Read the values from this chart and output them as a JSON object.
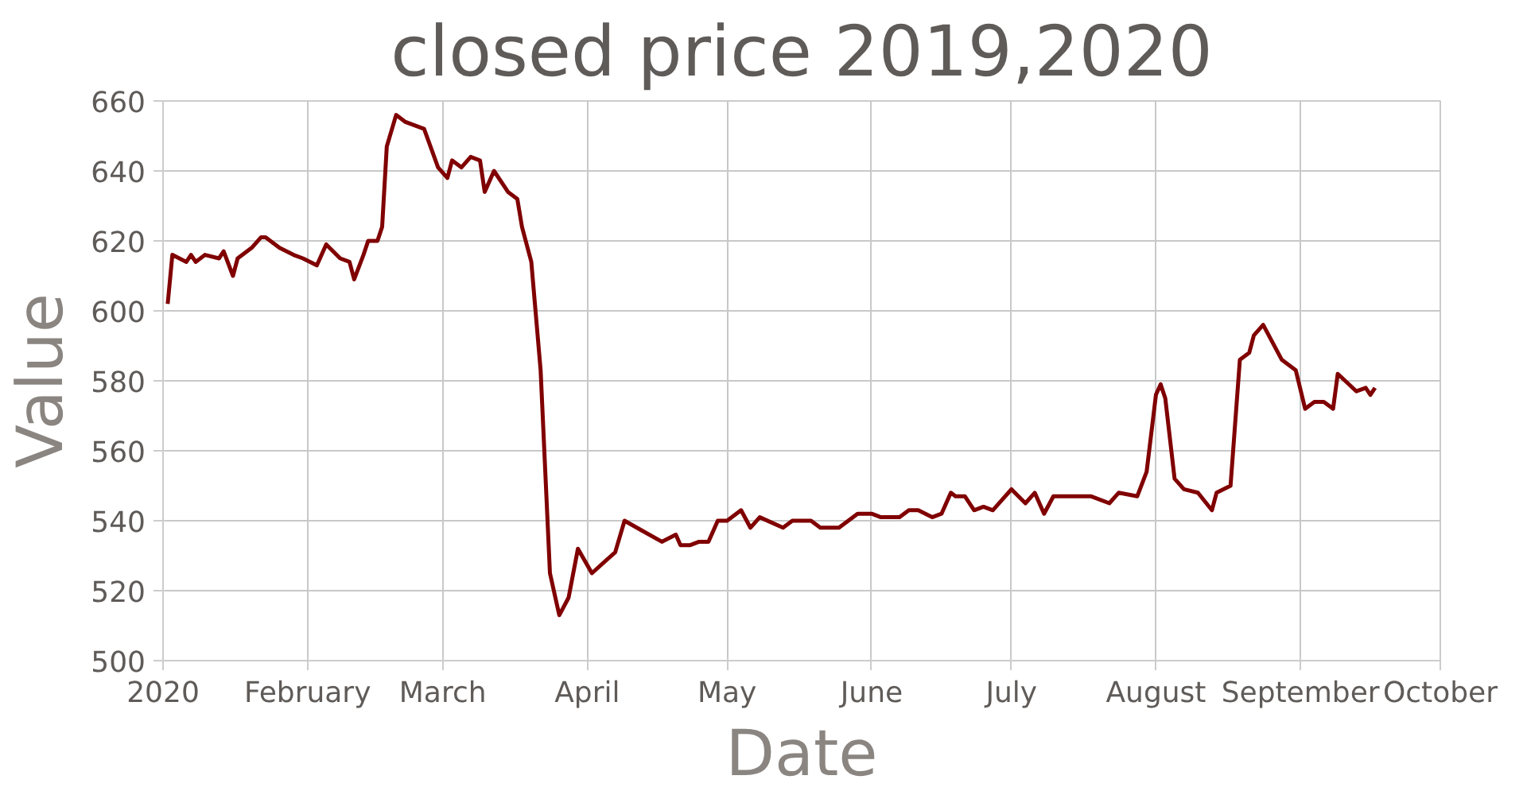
{
  "chart_data": {
    "type": "line",
    "title": "closed price 2019,2020",
    "xlabel": "Date",
    "ylabel": "Value",
    "x": [
      "2020-01-02",
      "2020-01-03",
      "2020-01-06",
      "2020-01-07",
      "2020-01-08",
      "2020-01-10",
      "2020-01-13",
      "2020-01-14",
      "2020-01-16",
      "2020-01-17",
      "2020-01-20",
      "2020-01-22",
      "2020-01-23",
      "2020-01-26",
      "2020-01-29",
      "2020-01-31",
      "2020-02-03",
      "2020-02-05",
      "2020-02-08",
      "2020-02-10",
      "2020-02-11",
      "2020-02-13",
      "2020-02-14",
      "2020-02-16",
      "2020-02-17",
      "2020-02-18",
      "2020-02-20",
      "2020-02-22",
      "2020-02-26",
      "2020-02-29",
      "2020-03-02",
      "2020-03-03",
      "2020-03-05",
      "2020-03-07",
      "2020-03-09",
      "2020-03-10",
      "2020-03-12",
      "2020-03-15",
      "2020-03-17",
      "2020-03-18",
      "2020-03-20",
      "2020-03-22",
      "2020-03-24",
      "2020-03-26",
      "2020-03-28",
      "2020-03-30",
      "2020-04-02",
      "2020-04-07",
      "2020-04-09",
      "2020-04-13",
      "2020-04-17",
      "2020-04-20",
      "2020-04-21",
      "2020-04-23",
      "2020-04-25",
      "2020-04-27",
      "2020-04-29",
      "2020-05-01",
      "2020-05-04",
      "2020-05-06",
      "2020-05-08",
      "2020-05-13",
      "2020-05-15",
      "2020-05-19",
      "2020-05-21",
      "2020-05-25",
      "2020-05-29",
      "2020-06-01",
      "2020-06-03",
      "2020-06-05",
      "2020-06-07",
      "2020-06-09",
      "2020-06-11",
      "2020-06-14",
      "2020-06-16",
      "2020-06-18",
      "2020-06-19",
      "2020-06-21",
      "2020-06-23",
      "2020-06-25",
      "2020-06-27",
      "2020-06-29",
      "2020-07-01",
      "2020-07-04",
      "2020-07-06",
      "2020-07-08",
      "2020-07-10",
      "2020-07-15",
      "2020-07-18",
      "2020-07-22",
      "2020-07-24",
      "2020-07-28",
      "2020-07-30",
      "2020-08-01",
      "2020-08-02",
      "2020-08-03",
      "2020-08-05",
      "2020-08-07",
      "2020-08-10",
      "2020-08-13",
      "2020-08-14",
      "2020-08-17",
      "2020-08-19",
      "2020-08-21",
      "2020-08-22",
      "2020-08-24",
      "2020-08-28",
      "2020-08-31",
      "2020-09-02",
      "2020-09-04",
      "2020-09-06",
      "2020-09-08",
      "2020-09-09",
      "2020-09-13",
      "2020-09-15",
      "2020-09-16",
      "2020-09-17"
    ],
    "series": [
      {
        "color": "#800000",
        "values": [
          602,
          616,
          614,
          616,
          614,
          616,
          615,
          617,
          610,
          615,
          618,
          621,
          621,
          618,
          616,
          615,
          613,
          619,
          615,
          614,
          609,
          616,
          620,
          620,
          624,
          647,
          656,
          654,
          652,
          641,
          638,
          643,
          641,
          644,
          643,
          634,
          640,
          634,
          632,
          624,
          614,
          583,
          525,
          513,
          518,
          532,
          525,
          531,
          540,
          537,
          534,
          536,
          533,
          533,
          534,
          534,
          540,
          540,
          543,
          538,
          541,
          538,
          540,
          540,
          538,
          538,
          542,
          542,
          541,
          541,
          541,
          543,
          543,
          541,
          542,
          548,
          547,
          547,
          543,
          544,
          543,
          546,
          549,
          545,
          548,
          542,
          547,
          547,
          547,
          545,
          548,
          547,
          554,
          576,
          579,
          575,
          552,
          549,
          548,
          543,
          548,
          550,
          586,
          588,
          593,
          596,
          586,
          583,
          572,
          574,
          574,
          572,
          582,
          577,
          578,
          576,
          578
        ]
      }
    ],
    "xlim": [
      "2020-01-01",
      "2020-10-01"
    ],
    "xticks": [
      {
        "value": "2020-01-01",
        "label": "2020"
      },
      {
        "value": "2020-02-01",
        "label": "February"
      },
      {
        "value": "2020-03-01",
        "label": "March"
      },
      {
        "value": "2020-04-01",
        "label": "April"
      },
      {
        "value": "2020-05-01",
        "label": "May"
      },
      {
        "value": "2020-06-01",
        "label": "June"
      },
      {
        "value": "2020-07-01",
        "label": "July"
      },
      {
        "value": "2020-08-01",
        "label": "August"
      },
      {
        "value": "2020-09-01",
        "label": "September"
      },
      {
        "value": "2020-10-01",
        "label": "October"
      }
    ],
    "ylim": [
      500,
      660
    ],
    "yticks": [
      500,
      520,
      540,
      560,
      580,
      600,
      620,
      640,
      660
    ],
    "grid": true
  }
}
